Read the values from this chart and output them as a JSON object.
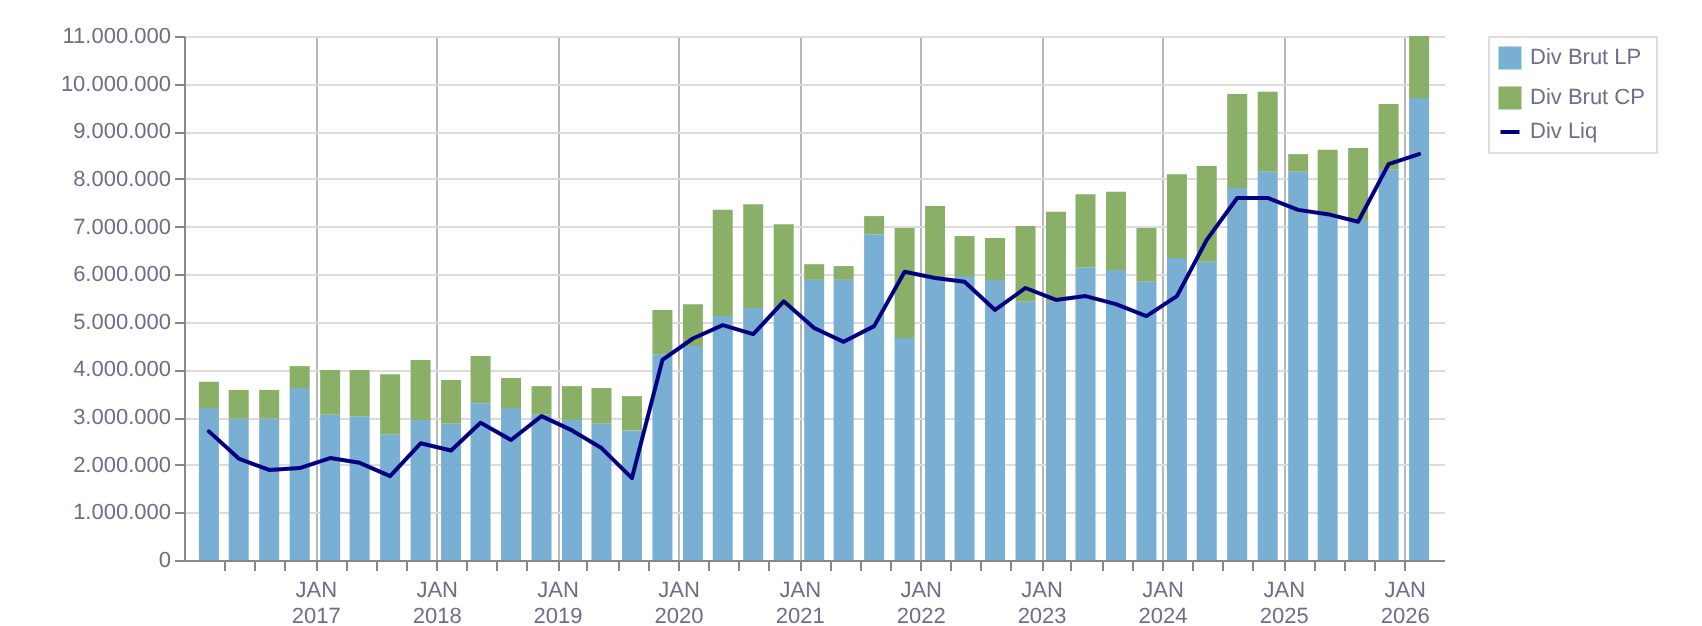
{
  "chart_data": {
    "type": "bar",
    "stacked": true,
    "grid": true,
    "legend": "top right",
    "marker": "none",
    "line_style": "solid",
    "x": [
      "2016-02-15",
      "2016-05-15",
      "2016-08-15",
      "2016-11-15",
      "2017-02-15",
      "2017-05-15",
      "2017-08-15",
      "2017-11-15",
      "2018-02-15",
      "2018-05-15",
      "2018-08-15",
      "2018-11-15",
      "2019-02-15",
      "2019-05-15",
      "2019-08-15",
      "2019-11-15",
      "2020-02-15",
      "2020-05-15",
      "2020-08-15",
      "2020-11-15",
      "2021-02-15",
      "2021-05-15",
      "2021-08-15",
      "2021-11-15",
      "2022-02-15",
      "2022-05-15",
      "2022-08-15",
      "2022-11-15",
      "2023-02-15",
      "2023-05-15",
      "2023-08-15",
      "2023-11-15",
      "2024-02-15",
      "2024-05-15",
      "2024-08-15",
      "2024-11-15",
      "2025-02-15",
      "2025-05-15",
      "2025-08-15",
      "2025-11-15",
      "2026-02-15"
    ],
    "xlim": [
      "2016-01-01",
      "2026-04-01"
    ],
    "xticks": [
      {
        "value": "2016-04-01",
        "label": null
      },
      {
        "value": "2016-07-01",
        "label": null
      },
      {
        "value": "2016-10-01",
        "label": null
      },
      {
        "value": "2017-01-01",
        "label": "JAN 2017"
      },
      {
        "value": "2017-04-01",
        "label": null
      },
      {
        "value": "2017-07-01",
        "label": null
      },
      {
        "value": "2017-10-01",
        "label": null
      },
      {
        "value": "2018-01-01",
        "label": "JAN 2018"
      },
      {
        "value": "2018-04-01",
        "label": null
      },
      {
        "value": "2018-07-01",
        "label": null
      },
      {
        "value": "2018-10-01",
        "label": null
      },
      {
        "value": "2019-01-01",
        "label": "JAN 2019"
      },
      {
        "value": "2019-04-01",
        "label": null
      },
      {
        "value": "2019-07-01",
        "label": null
      },
      {
        "value": "2019-10-01",
        "label": null
      },
      {
        "value": "2020-01-01",
        "label": "JAN 2020"
      },
      {
        "value": "2020-04-01",
        "label": null
      },
      {
        "value": "2020-07-01",
        "label": null
      },
      {
        "value": "2020-10-01",
        "label": null
      },
      {
        "value": "2021-01-01",
        "label": "JAN 2021"
      },
      {
        "value": "2021-04-01",
        "label": null
      },
      {
        "value": "2021-07-01",
        "label": null
      },
      {
        "value": "2021-10-01",
        "label": null
      },
      {
        "value": "2022-01-01",
        "label": "JAN 2022"
      },
      {
        "value": "2022-04-01",
        "label": null
      },
      {
        "value": "2022-07-01",
        "label": null
      },
      {
        "value": "2022-10-01",
        "label": null
      },
      {
        "value": "2023-01-01",
        "label": "JAN 2023"
      },
      {
        "value": "2023-04-01",
        "label": null
      },
      {
        "value": "2023-07-01",
        "label": null
      },
      {
        "value": "2023-10-01",
        "label": null
      },
      {
        "value": "2024-01-01",
        "label": "JAN 2024"
      },
      {
        "value": "2024-04-01",
        "label": null
      },
      {
        "value": "2024-07-01",
        "label": null
      },
      {
        "value": "2024-10-01",
        "label": null
      },
      {
        "value": "2025-01-01",
        "label": "JAN 2025"
      },
      {
        "value": "2025-04-01",
        "label": null
      },
      {
        "value": "2025-07-01",
        "label": null
      },
      {
        "value": "2025-10-01",
        "label": null
      },
      {
        "value": "2026-01-01",
        "label": "JAN 2026"
      }
    ],
    "ylim": [
      0,
      11000000
    ],
    "yticks": [
      0,
      {
        "value": 1000000,
        "label": "1.000.000"
      },
      {
        "value": 2000000,
        "label": "2.000.000"
      },
      {
        "value": 3000000,
        "label": "3.000.000"
      },
      {
        "value": 4000000,
        "label": "4.000.000"
      },
      {
        "value": 5000000,
        "label": "5.000.000"
      },
      {
        "value": 6000000,
        "label": "6.000.000"
      },
      {
        "value": 7000000,
        "label": "7.000.000"
      },
      {
        "value": 8000000,
        "label": "8.000.000"
      },
      {
        "value": 9000000,
        "label": "9.000.000"
      },
      {
        "value": 10000000,
        "label": "10.000.000"
      },
      {
        "value": 11000000,
        "label": "11.000.000"
      }
    ],
    "series": [
      {
        "name": "Div Brut LP",
        "type": "bar",
        "color": "#78afd2",
        "values": [
          3190000,
          2970000,
          2970000,
          3610000,
          3050000,
          3020000,
          2630000,
          2940000,
          2860000,
          3290000,
          3190000,
          3050000,
          2940000,
          2860000,
          2720000,
          4320000,
          4490000,
          5120000,
          5290000,
          5290000,
          5880000,
          5880000,
          6840000,
          4660000,
          5960000,
          5960000,
          5880000,
          5420000,
          5420000,
          6140000,
          6090000,
          5840000,
          6340000,
          6260000,
          7810000,
          8150000,
          8150000,
          7260000,
          7140000,
          8190000,
          9700000
        ]
      },
      {
        "name": "Div Brut CP",
        "type": "bar",
        "color": "#8ab068",
        "values": [
          550000,
          600000,
          600000,
          460000,
          940000,
          970000,
          1270000,
          1260000,
          920000,
          990000,
          630000,
          600000,
          710000,
          750000,
          720000,
          930000,
          880000,
          2230000,
          2180000,
          1760000,
          330000,
          290000,
          380000,
          2310000,
          1470000,
          840000,
          880000,
          1590000,
          1890000,
          1540000,
          1640000,
          1130000,
          1760000,
          2010000,
          1970000,
          1680000,
          370000,
          1350000,
          1510000,
          1380000,
          1300000
        ]
      },
      {
        "name": "Div Liq",
        "type": "line",
        "color": "#000080",
        "values": [
          2700000,
          2130000,
          1890000,
          1930000,
          2140000,
          2040000,
          1760000,
          2450000,
          2300000,
          2880000,
          2520000,
          3020000,
          2720000,
          2350000,
          1720000,
          4200000,
          4650000,
          4930000,
          4740000,
          5430000,
          4870000,
          4580000,
          4910000,
          6050000,
          5920000,
          5840000,
          5250000,
          5710000,
          5460000,
          5540000,
          5370000,
          5120000,
          5540000,
          6720000,
          7600000,
          7600000,
          7350000,
          7260000,
          7100000,
          8310000,
          8520000
        ]
      }
    ]
  }
}
